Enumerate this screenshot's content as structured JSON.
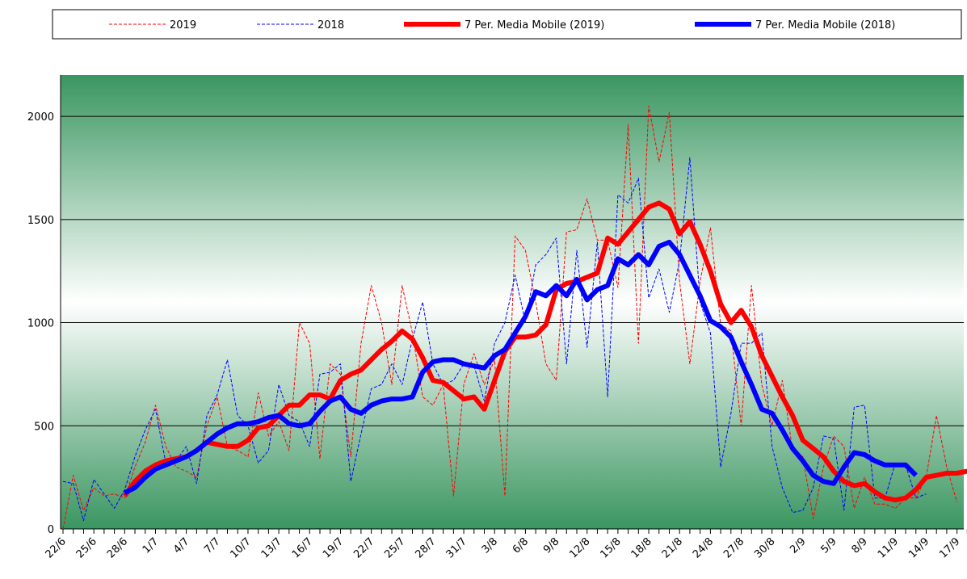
{
  "chart_data": {
    "type": "line",
    "categories": [
      "22/6",
      null,
      null,
      "25/6",
      null,
      null,
      "28/6",
      null,
      null,
      "1/7",
      null,
      null,
      "4/7",
      null,
      null,
      "7/7",
      null,
      null,
      "10/7",
      null,
      null,
      "13/7",
      null,
      null,
      "16/7",
      null,
      null,
      "19/7",
      null,
      null,
      "22/7",
      null,
      null,
      "25/7",
      null,
      null,
      "28/7",
      null,
      null,
      "31/7",
      null,
      null,
      "3/8",
      null,
      null,
      "6/8",
      null,
      null,
      "9/8",
      null,
      null,
      "12/8",
      null,
      null,
      "15/8",
      null,
      null,
      "18/8",
      null,
      null,
      "21/8",
      null,
      null,
      "24/8",
      null,
      null,
      "27/8",
      null,
      null,
      "30/8",
      null,
      null,
      "2/9",
      null,
      null,
      "5/9",
      null,
      null,
      "8/9",
      null,
      null,
      "11/9",
      null,
      null,
      "14/9",
      null,
      null,
      "17/9",
      null
    ],
    "series": [
      {
        "name": "2019",
        "color": "#ff0000",
        "dashed": true,
        "line_width": 1,
        "values": [
          0,
          260,
          90,
          200,
          160,
          170,
          150,
          300,
          420,
          600,
          400,
          300,
          280,
          250,
          500,
          640,
          400,
          380,
          350,
          660,
          450,
          520,
          380,
          1000,
          900,
          340,
          800,
          750,
          350,
          900,
          1180,
          1000,
          700,
          1180,
          950,
          640,
          600,
          700,
          160,
          700,
          850,
          700,
          820,
          160,
          1420,
          1350,
          1100,
          800,
          720,
          1440,
          1450,
          1600,
          1400,
          1400,
          1170,
          1960,
          900,
          2050,
          1780,
          2020,
          1200,
          800,
          1200,
          1460,
          990,
          960,
          500,
          1180,
          700,
          500,
          720,
          380,
          350,
          50,
          300,
          450,
          400,
          100,
          250,
          120,
          120,
          100,
          150,
          150,
          250,
          550,
          300,
          130,
          null
        ]
      },
      {
        "name": "2018",
        "color": "#0000ff",
        "dashed": true,
        "line_width": 1,
        "values": [
          230,
          220,
          40,
          240,
          170,
          100,
          190,
          350,
          480,
          580,
          320,
          330,
          400,
          220,
          550,
          650,
          820,
          550,
          500,
          320,
          380,
          700,
          550,
          520,
          400,
          750,
          760,
          800,
          230,
          460,
          680,
          700,
          800,
          700,
          920,
          1100,
          800,
          700,
          720,
          800,
          790,
          620,
          900,
          1000,
          1230,
          1000,
          1280,
          1330,
          1410,
          800,
          1350,
          880,
          1390,
          640,
          1620,
          1580,
          1700,
          1120,
          1260,
          1050,
          1300,
          1800,
          1100,
          950,
          300,
          560,
          900,
          900,
          950,
          400,
          200,
          80,
          90,
          200,
          450,
          440,
          90,
          590,
          600,
          150,
          150,
          320,
          310,
          150,
          170,
          null,
          null,
          null,
          null
        ]
      },
      {
        "name": "7 Per. Media Mobile (2019)",
        "color": "#ff0000",
        "dashed": false,
        "line_width": 6,
        "values": [
          null,
          null,
          null,
          null,
          null,
          null,
          160,
          230,
          280,
          310,
          330,
          340,
          350,
          380,
          420,
          410,
          400,
          400,
          430,
          490,
          500,
          550,
          600,
          600,
          650,
          650,
          630,
          720,
          750,
          770,
          820,
          870,
          910,
          960,
          920,
          830,
          720,
          710,
          670,
          630,
          640,
          580,
          720,
          860,
          930,
          930,
          940,
          990,
          1160,
          1190,
          1200,
          1220,
          1240,
          1410,
          1380,
          1440,
          1500,
          1560,
          1580,
          1550,
          1430,
          1490,
          1380,
          1250,
          1090,
          1000,
          1060,
          980,
          840,
          740,
          640,
          550,
          430,
          390,
          350,
          280,
          230,
          210,
          220,
          180,
          150,
          140,
          150,
          190,
          250,
          260,
          270,
          270,
          280
        ]
      },
      {
        "name": "7 Per. Media Mobile (2018)",
        "color": "#0000ff",
        "dashed": false,
        "line_width": 6,
        "values": [
          null,
          null,
          null,
          null,
          null,
          null,
          175,
          200,
          250,
          290,
          310,
          330,
          350,
          380,
          420,
          460,
          490,
          510,
          510,
          520,
          540,
          550,
          510,
          500,
          510,
          570,
          620,
          640,
          580,
          560,
          600,
          620,
          630,
          630,
          640,
          760,
          810,
          820,
          820,
          800,
          790,
          780,
          840,
          870,
          950,
          1030,
          1150,
          1130,
          1180,
          1130,
          1210,
          1110,
          1160,
          1180,
          1310,
          1280,
          1330,
          1280,
          1370,
          1390,
          1330,
          1230,
          1130,
          1010,
          980,
          930,
          810,
          700,
          580,
          560,
          480,
          390,
          330,
          260,
          230,
          220,
          300,
          370,
          360,
          330,
          310,
          310,
          310,
          260,
          null,
          null,
          null,
          null,
          null
        ]
      }
    ],
    "ylim": [
      0,
      2200
    ],
    "yticks": [
      0,
      500,
      1000,
      1500,
      2000
    ],
    "grid": true,
    "legend": "top"
  }
}
